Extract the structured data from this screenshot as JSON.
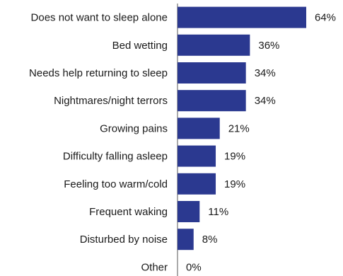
{
  "chart_data": {
    "type": "bar",
    "orientation": "horizontal",
    "title": "",
    "xlabel": "",
    "ylabel": "",
    "categories": [
      "Does not want to sleep alone",
      "Bed wetting",
      "Needs help returning to sleep",
      "Nightmares/night terrors",
      "Growing pains",
      "Difficulty falling asleep",
      "Feeling too warm/cold",
      "Frequent waking",
      "Disturbed by noise",
      "Other"
    ],
    "values": [
      64,
      36,
      34,
      34,
      21,
      19,
      19,
      11,
      8,
      0
    ],
    "value_labels": [
      "64%",
      "36%",
      "34%",
      "34%",
      "21%",
      "19%",
      "19%",
      "11%",
      "8%",
      "0%"
    ],
    "xlim": [
      0,
      64
    ],
    "bar_color": "#2b3990",
    "axis_color": "#555555",
    "grid": false,
    "legend": "none"
  }
}
